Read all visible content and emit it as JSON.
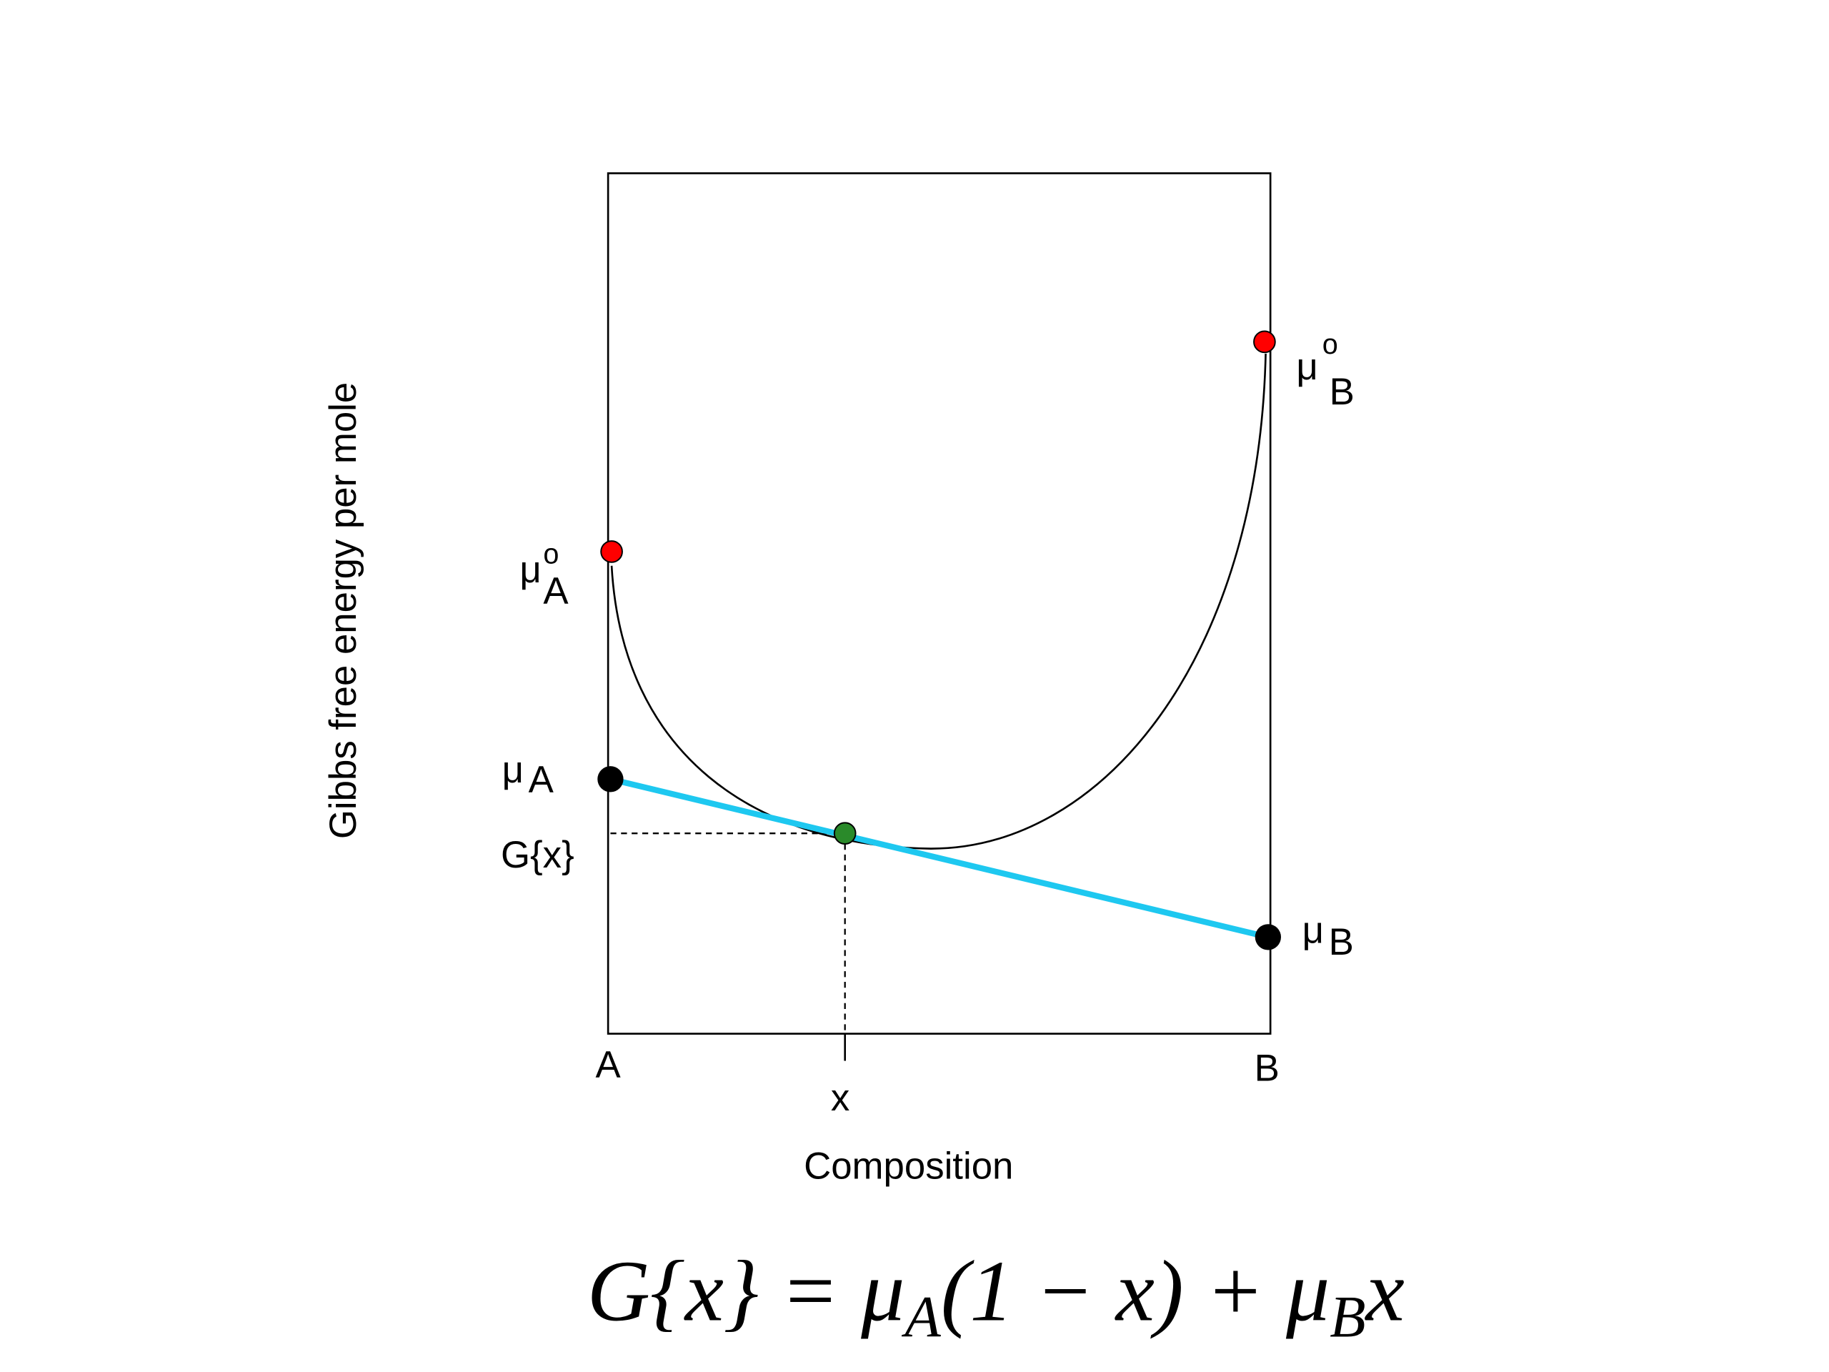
{
  "y_axis_label": "Gibbs free energy per mole",
  "x_axis_label": "Composition",
  "x_ticks": [
    "A",
    "x",
    "B"
  ],
  "point_labels": [
    {
      "symbol": "μ",
      "sup": "o",
      "sub": "A"
    },
    {
      "symbol": "μ",
      "sup": "o",
      "sub": "B"
    },
    {
      "symbol": "μ",
      "sub": "A"
    },
    {
      "symbol": "μ",
      "sub": "B"
    },
    {
      "text": "G{x}"
    }
  ],
  "equation": [
    {
      "text": "G{x} = μ"
    },
    {
      "sub": "A"
    },
    {
      "text": "(1 − x) + μ"
    },
    {
      "sub": "B"
    },
    {
      "text": "x"
    }
  ]
}
